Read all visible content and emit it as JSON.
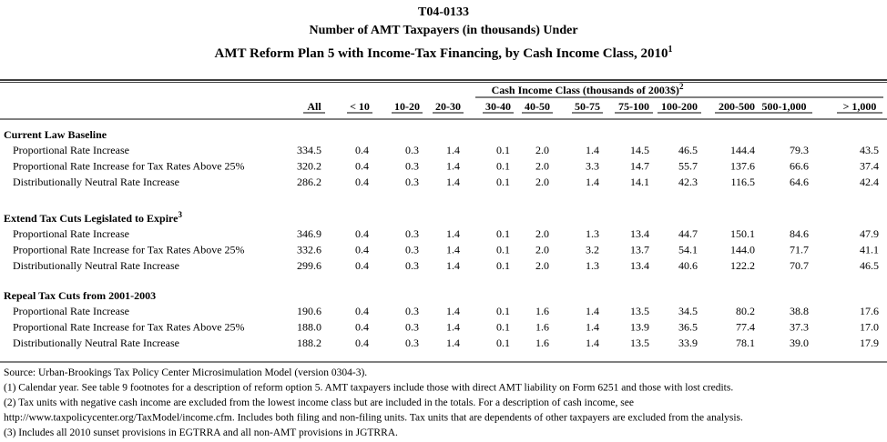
{
  "header": {
    "code": "T04-0133",
    "title_line1": "Number of AMT Taxpayers (in thousands) Under",
    "title_line2": "AMT Reform Plan 5 with Income-Tax Financing, by Cash Income Class, 2010",
    "title_line2_note": "1"
  },
  "table": {
    "group_header": "Cash Income Class (thousands of 2003$)",
    "group_header_note": "2",
    "columns": [
      "All",
      "< 10",
      "10-20",
      "20-30",
      "30-40",
      "40-50",
      "50-75",
      "75-100",
      "100-200",
      "200-500",
      "500-1,000",
      "> 1,000"
    ],
    "sections": [
      {
        "title": "Current Law Baseline",
        "rows": [
          {
            "label": "Proportional Rate Increase",
            "values": [
              "334.5",
              "0.4",
              "0.3",
              "1.4",
              "0.1",
              "2.0",
              "1.4",
              "14.5",
              "46.5",
              "144.4",
              "79.3",
              "43.5"
            ]
          },
          {
            "label": "Proportional Rate Increase for Tax Rates Above 25%",
            "values": [
              "320.2",
              "0.4",
              "0.3",
              "1.4",
              "0.1",
              "2.0",
              "3.3",
              "14.7",
              "55.7",
              "137.6",
              "66.6",
              "37.4"
            ]
          },
          {
            "label": "Distributionally Neutral Rate Increase",
            "values": [
              "286.2",
              "0.4",
              "0.3",
              "1.4",
              "0.1",
              "2.0",
              "1.4",
              "14.1",
              "42.3",
              "116.5",
              "64.6",
              "42.4"
            ]
          }
        ]
      },
      {
        "title": "Extend Tax Cuts Legislated to Expire",
        "note": "3",
        "rows": [
          {
            "label": "Proportional Rate Increase",
            "values": [
              "346.9",
              "0.4",
              "0.3",
              "1.4",
              "0.1",
              "2.0",
              "1.3",
              "13.4",
              "44.7",
              "150.1",
              "84.6",
              "47.9"
            ]
          },
          {
            "label": "Proportional Rate Increase for Tax Rates Above 25%",
            "values": [
              "332.6",
              "0.4",
              "0.3",
              "1.4",
              "0.1",
              "2.0",
              "3.2",
              "13.7",
              "54.1",
              "144.0",
              "71.7",
              "41.1"
            ]
          },
          {
            "label": "Distributionally Neutral Rate Increase",
            "values": [
              "299.6",
              "0.4",
              "0.3",
              "1.4",
              "0.1",
              "2.0",
              "1.3",
              "13.4",
              "40.6",
              "122.2",
              "70.7",
              "46.5"
            ]
          }
        ]
      },
      {
        "title": "Repeal Tax Cuts from 2001-2003",
        "rows": [
          {
            "label": "Proportional Rate Increase",
            "values": [
              "190.6",
              "0.4",
              "0.3",
              "1.4",
              "0.1",
              "1.6",
              "1.4",
              "13.5",
              "34.5",
              "80.2",
              "38.8",
              "17.6"
            ]
          },
          {
            "label": "Proportional Rate Increase for Tax Rates Above 25%",
            "values": [
              "188.0",
              "0.4",
              "0.3",
              "1.4",
              "0.1",
              "1.6",
              "1.4",
              "13.9",
              "36.5",
              "77.4",
              "37.3",
              "17.0"
            ]
          },
          {
            "label": "Distributionally Neutral Rate Increase",
            "values": [
              "188.2",
              "0.4",
              "0.3",
              "1.4",
              "0.1",
              "1.6",
              "1.4",
              "13.5",
              "33.9",
              "78.1",
              "39.0",
              "17.9"
            ]
          }
        ]
      }
    ]
  },
  "footnotes": [
    "Source: Urban-Brookings Tax Policy Center Microsimulation Model (version 0304-3).",
    "(1) Calendar year.  See table 9 footnotes for a description of reform option 5.  AMT taxpayers include those with direct AMT liability on Form 6251 and those with lost credits.",
    "(2) Tax units with negative cash income are excluded from the lowest income class but are included in the totals. For a description of cash income, see",
    "http://www.taxpolicycenter.org/TaxModel/income.cfm. Includes both filing and non-filing units.  Tax units that are dependents of other taxpayers are excluded from the analysis.",
    "(3) Includes all 2010 sunset provisions in EGTRRA and all non-AMT provisions in JGTRRA."
  ]
}
